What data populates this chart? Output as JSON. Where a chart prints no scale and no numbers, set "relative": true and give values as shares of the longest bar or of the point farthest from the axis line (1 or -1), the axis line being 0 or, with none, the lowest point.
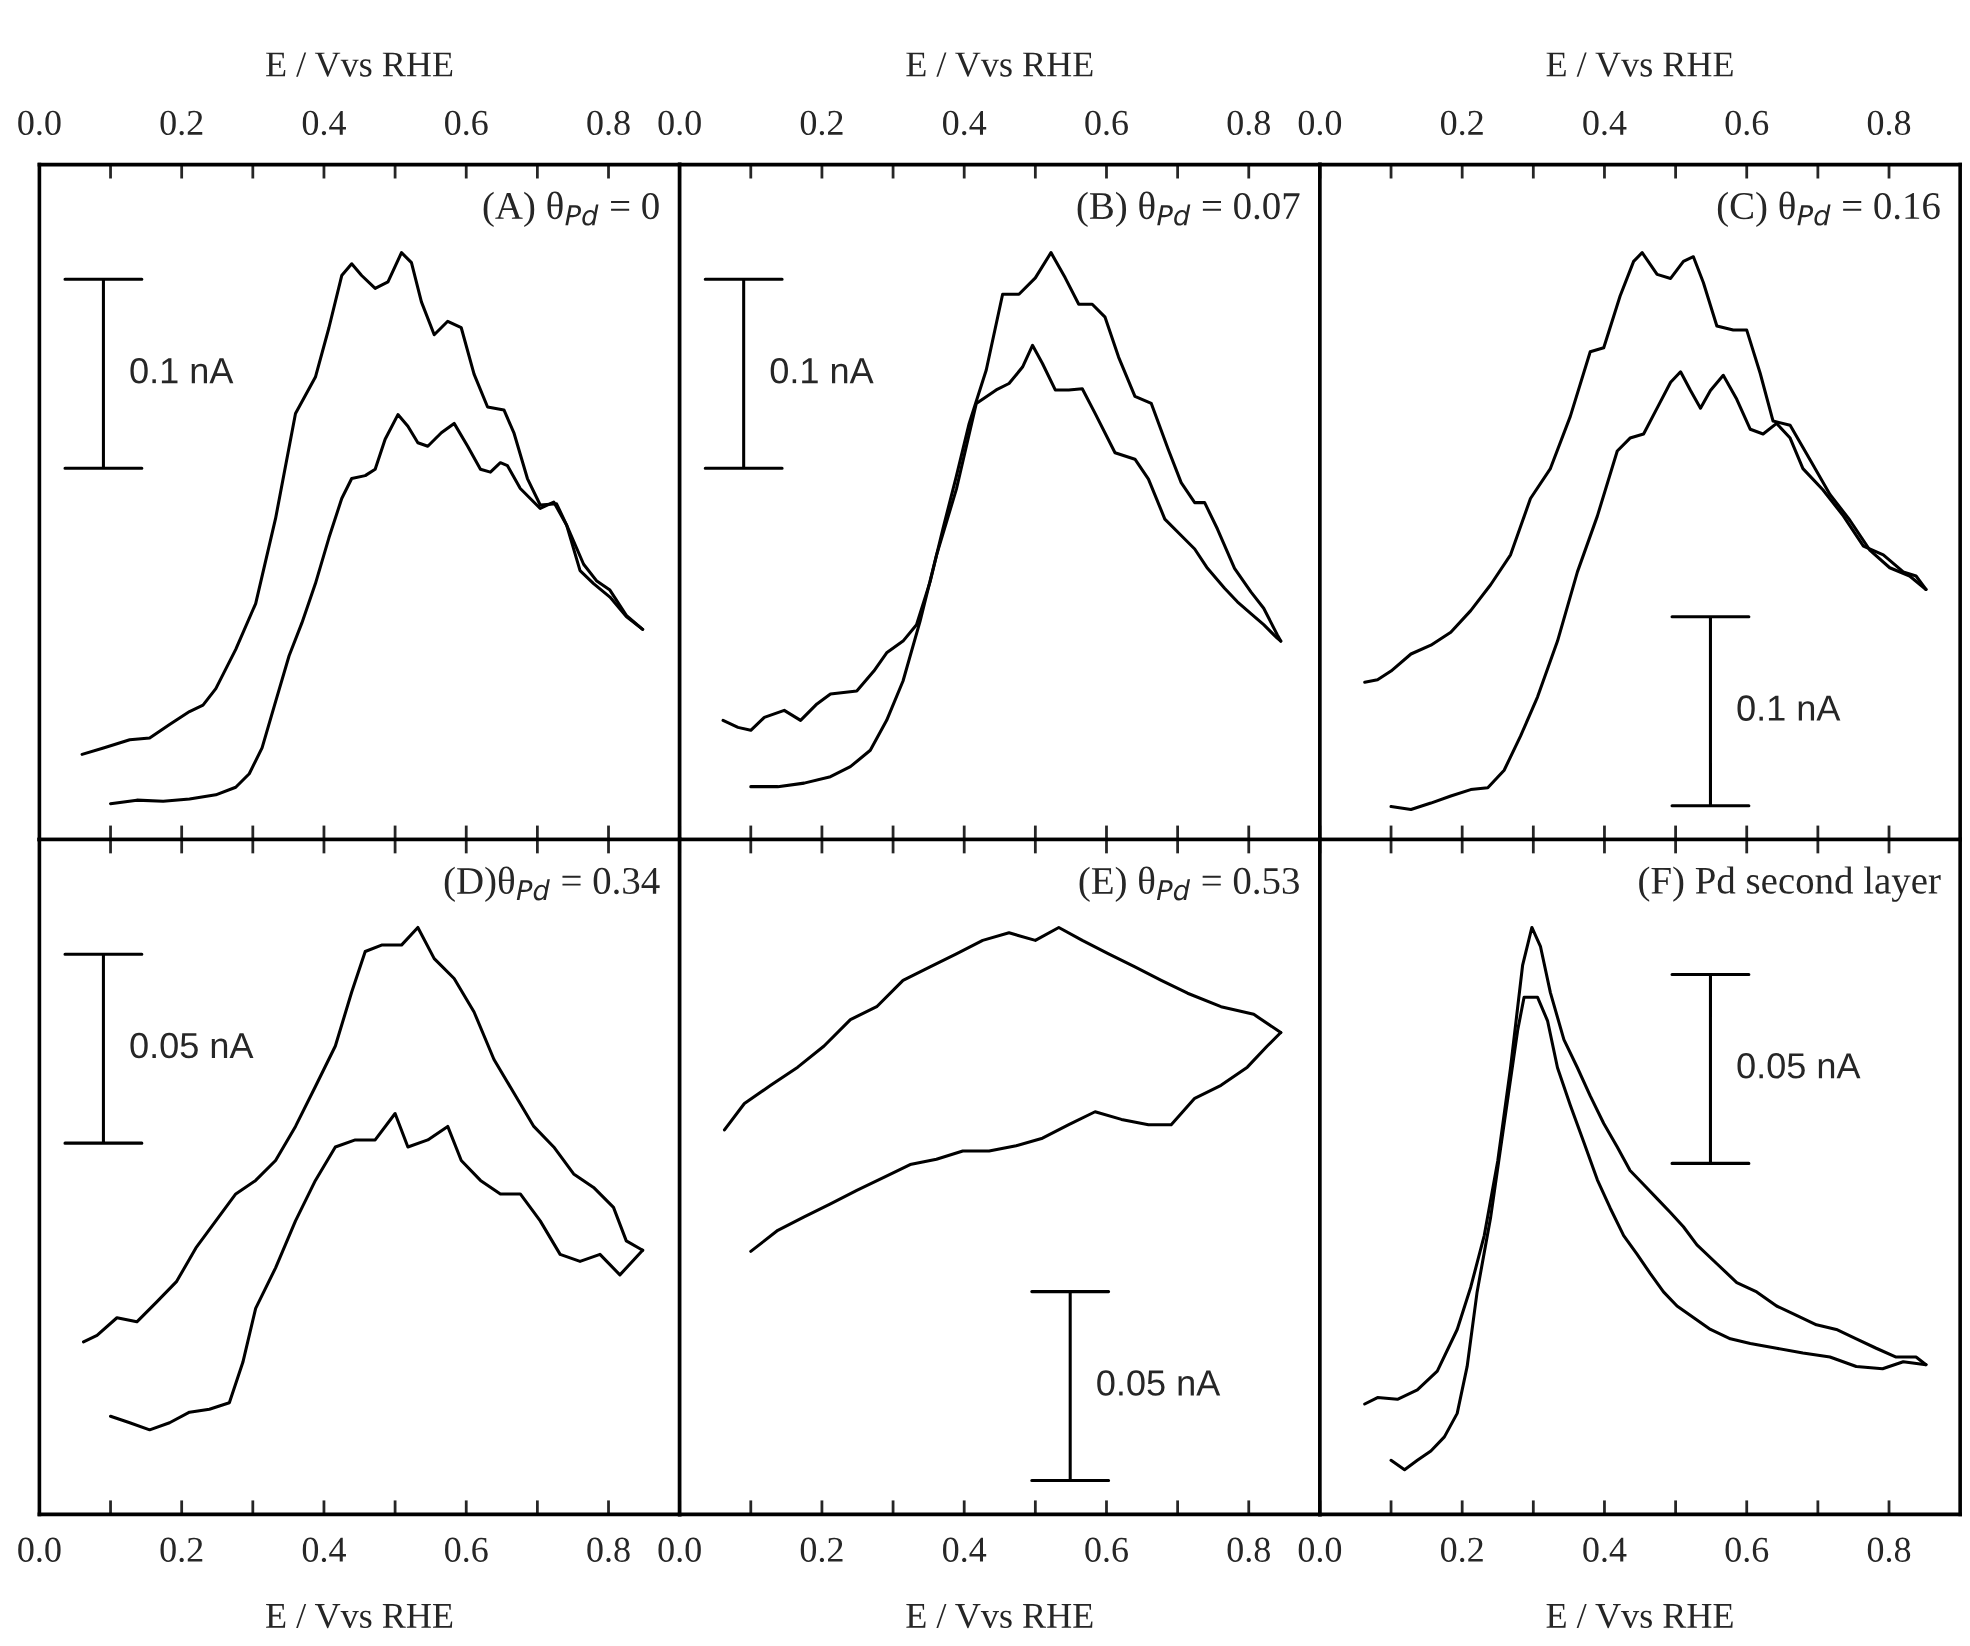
{
  "chart_data": [
    {
      "type": "line",
      "title": "(A) θ$_{Pd}$ = 0",
      "xlabel": "E / Vvs RHE",
      "annotations": [
        "0.1 nA"
      ],
      "relative": true,
      "tick_labels": "x",
      "xlim": [
        0,
        0.9
      ],
      "xticks": [
        {
          "value": 0,
          "label": "0.0"
        },
        {
          "value": 0.1,
          "label": null
        },
        {
          "value": 0.2,
          "label": "0.2"
        },
        {
          "value": 0.3,
          "label": null
        },
        {
          "value": 0.4,
          "label": "0.4"
        },
        {
          "value": 0.5,
          "label": null
        },
        {
          "value": 0.6,
          "label": "0.6"
        },
        {
          "value": 0.7,
          "label": null
        },
        {
          "value": 0.8,
          "label": "0.8"
        }
      ],
      "series": [
        {
          "color": "#000000",
          "x": [
            0.06,
            0.09,
            0.127,
            0.155,
            0.183,
            0.211,
            0.23,
            0.248,
            0.276,
            0.304,
            0.332,
            0.36,
            0.388,
            0.407,
            0.425,
            0.439,
            0.453,
            0.472,
            0.49,
            0.509,
            0.523,
            0.537,
            0.555,
            0.574,
            0.593,
            0.611,
            0.63,
            0.653,
            0.667,
            0.686,
            0.704,
            0.727,
            0.741,
            0.76,
            0.779,
            0.802,
            0.825,
            0.848
          ],
          "values": [
            0.145,
            0.156,
            0.17,
            0.173,
            0.196,
            0.218,
            0.229,
            0.257,
            0.324,
            0.402,
            0.547,
            0.726,
            0.788,
            0.872,
            0.961,
            0.981,
            0.961,
            0.939,
            0.95,
            1.0,
            0.983,
            0.916,
            0.86,
            0.883,
            0.872,
            0.793,
            0.737,
            0.732,
            0.693,
            0.615,
            0.57,
            0.572,
            0.536,
            0.458,
            0.436,
            0.413,
            0.38,
            0.358
          ]
        },
        {
          "color": "#000000",
          "x": [
            0.1,
            0.137,
            0.174,
            0.211,
            0.248,
            0.276,
            0.295,
            0.313,
            0.332,
            0.351,
            0.369,
            0.388,
            0.407,
            0.425,
            0.439,
            0.458,
            0.472,
            0.486,
            0.504,
            0.518,
            0.532,
            0.546,
            0.565,
            0.583,
            0.602,
            0.62,
            0.634,
            0.648,
            0.658,
            0.676,
            0.704,
            0.723,
            0.741,
            0.765,
            0.783,
            0.802,
            0.825,
            0.848
          ],
          "values": [
            0.061,
            0.067,
            0.065,
            0.069,
            0.076,
            0.089,
            0.112,
            0.156,
            0.235,
            0.313,
            0.369,
            0.436,
            0.514,
            0.581,
            0.615,
            0.62,
            0.631,
            0.682,
            0.724,
            0.704,
            0.676,
            0.67,
            0.693,
            0.709,
            0.67,
            0.631,
            0.626,
            0.642,
            0.637,
            0.598,
            0.564,
            0.575,
            0.536,
            0.469,
            0.441,
            0.425,
            0.382,
            0.358
          ]
        }
      ]
    },
    {
      "type": "line",
      "title": "(B) θ$_{Pd}$ = 0.07",
      "xlabel": "E / Vvs RHE",
      "annotations": [
        "0.1 nA"
      ],
      "relative": true,
      "tick_labels": "x",
      "xlim": [
        0,
        0.9
      ],
      "xticks": [
        {
          "value": 0,
          "label": "0.0"
        },
        {
          "value": 0.1,
          "label": null
        },
        {
          "value": 0.2,
          "label": "0.2"
        },
        {
          "value": 0.3,
          "label": null
        },
        {
          "value": 0.4,
          "label": "0.4"
        },
        {
          "value": 0.5,
          "label": null
        },
        {
          "value": 0.6,
          "label": "0.6"
        },
        {
          "value": 0.7,
          "label": null
        },
        {
          "value": 0.8,
          "label": "0.8"
        }
      ],
      "series": [
        {
          "color": "#000000",
          "x": [
            0.061,
            0.082,
            0.1,
            0.119,
            0.147,
            0.17,
            0.193,
            0.212,
            0.249,
            0.273,
            0.291,
            0.314,
            0.333,
            0.352,
            0.37,
            0.389,
            0.407,
            0.431,
            0.454,
            0.477,
            0.5,
            0.522,
            0.542,
            0.561,
            0.58,
            0.598,
            0.617,
            0.64,
            0.663,
            0.687,
            0.705,
            0.724,
            0.738,
            0.756,
            0.78,
            0.803,
            0.821,
            0.84,
            0.845
          ],
          "values": [
            0.203,
            0.191,
            0.186,
            0.208,
            0.22,
            0.203,
            0.231,
            0.248,
            0.253,
            0.287,
            0.318,
            0.338,
            0.366,
            0.439,
            0.529,
            0.619,
            0.709,
            0.8,
            0.929,
            0.929,
            0.957,
            1.0,
            0.957,
            0.912,
            0.912,
            0.89,
            0.822,
            0.755,
            0.743,
            0.664,
            0.608,
            0.574,
            0.574,
            0.529,
            0.462,
            0.422,
            0.394,
            0.349,
            0.338
          ]
        },
        {
          "color": "#000000",
          "x": [
            0.1,
            0.138,
            0.175,
            0.212,
            0.24,
            0.268,
            0.291,
            0.314,
            0.338,
            0.361,
            0.389,
            0.417,
            0.445,
            0.463,
            0.482,
            0.496,
            0.51,
            0.528,
            0.547,
            0.566,
            0.584,
            0.612,
            0.64,
            0.659,
            0.682,
            0.705,
            0.724,
            0.742,
            0.766,
            0.784,
            0.803,
            0.821,
            0.84,
            0.845
          ],
          "values": [
            0.09,
            0.09,
            0.096,
            0.107,
            0.124,
            0.152,
            0.203,
            0.27,
            0.372,
            0.484,
            0.597,
            0.743,
            0.766,
            0.777,
            0.805,
            0.842,
            0.811,
            0.766,
            0.766,
            0.768,
            0.726,
            0.659,
            0.648,
            0.614,
            0.546,
            0.518,
            0.495,
            0.462,
            0.428,
            0.405,
            0.385,
            0.366,
            0.343,
            0.338
          ]
        }
      ]
    },
    {
      "type": "line",
      "title": "(C) θ$_{Pd}$ = 0.16",
      "xlabel": "E / Vvs RHE",
      "annotations": [
        "0.1 nA"
      ],
      "relative": true,
      "tick_labels": "x",
      "xlim": [
        0,
        0.9
      ],
      "xticks": [
        {
          "value": 0,
          "label": "0.0"
        },
        {
          "value": 0.1,
          "label": null
        },
        {
          "value": 0.2,
          "label": "0.2"
        },
        {
          "value": 0.3,
          "label": null
        },
        {
          "value": 0.4,
          "label": "0.4"
        },
        {
          "value": 0.5,
          "label": null
        },
        {
          "value": 0.6,
          "label": "0.6"
        },
        {
          "value": 0.7,
          "label": null
        },
        {
          "value": 0.8,
          "label": "0.8"
        }
      ],
      "series": [
        {
          "color": "#000000",
          "x": [
            0.063,
            0.081,
            0.1,
            0.128,
            0.156,
            0.184,
            0.212,
            0.24,
            0.268,
            0.296,
            0.324,
            0.352,
            0.38,
            0.399,
            0.422,
            0.441,
            0.453,
            0.474,
            0.493,
            0.511,
            0.525,
            0.539,
            0.558,
            0.581,
            0.6,
            0.619,
            0.637,
            0.661,
            0.689,
            0.717,
            0.745,
            0.773,
            0.801,
            0.829,
            0.852
          ],
          "values": [
            0.268,
            0.272,
            0.287,
            0.316,
            0.331,
            0.353,
            0.39,
            0.434,
            0.485,
            0.581,
            0.632,
            0.721,
            0.831,
            0.838,
            0.926,
            0.985,
            1.0,
            0.963,
            0.956,
            0.985,
            0.993,
            0.949,
            0.875,
            0.868,
            0.868,
            0.794,
            0.713,
            0.706,
            0.647,
            0.588,
            0.544,
            0.493,
            0.463,
            0.449,
            0.426
          ]
        },
        {
          "color": "#000000",
          "x": [
            0.1,
            0.128,
            0.156,
            0.184,
            0.212,
            0.236,
            0.259,
            0.282,
            0.306,
            0.334,
            0.362,
            0.39,
            0.418,
            0.436,
            0.455,
            0.474,
            0.493,
            0.507,
            0.521,
            0.535,
            0.549,
            0.567,
            0.586,
            0.605,
            0.623,
            0.642,
            0.661,
            0.679,
            0.707,
            0.736,
            0.764,
            0.792,
            0.82,
            0.838,
            0.852
          ],
          "values": [
            0.056,
            0.051,
            0.062,
            0.074,
            0.085,
            0.088,
            0.118,
            0.176,
            0.243,
            0.338,
            0.456,
            0.551,
            0.662,
            0.684,
            0.691,
            0.735,
            0.779,
            0.797,
            0.765,
            0.735,
            0.765,
            0.791,
            0.75,
            0.699,
            0.691,
            0.709,
            0.684,
            0.632,
            0.596,
            0.551,
            0.5,
            0.485,
            0.456,
            0.449,
            0.426
          ]
        }
      ]
    },
    {
      "type": "line",
      "title": "(D)θ$_{Pd}$ = 0.34",
      "xlabel": "E / Vvs RHE",
      "annotations": [
        "0.05 nA"
      ],
      "relative": true,
      "tick_labels": "x",
      "xlim": [
        0,
        0.9
      ],
      "xticks": [
        {
          "value": 0,
          "label": "0.0"
        },
        {
          "value": 0.1,
          "label": null
        },
        {
          "value": 0.2,
          "label": "0.2"
        },
        {
          "value": 0.3,
          "label": null
        },
        {
          "value": 0.4,
          "label": "0.4"
        },
        {
          "value": 0.5,
          "label": null
        },
        {
          "value": 0.6,
          "label": "0.6"
        },
        {
          "value": 0.7,
          "label": null
        },
        {
          "value": 0.8,
          "label": "0.8"
        }
      ],
      "series": [
        {
          "color": "#000000",
          "x": [
            0.062,
            0.081,
            0.109,
            0.137,
            0.165,
            0.193,
            0.22,
            0.248,
            0.276,
            0.304,
            0.332,
            0.36,
            0.388,
            0.416,
            0.439,
            0.458,
            0.481,
            0.509,
            0.532,
            0.555,
            0.583,
            0.611,
            0.639,
            0.667,
            0.695,
            0.723,
            0.751,
            0.779,
            0.807,
            0.825,
            0.848
          ],
          "values": [
            0.294,
            0.305,
            0.335,
            0.328,
            0.362,
            0.397,
            0.454,
            0.5,
            0.546,
            0.569,
            0.603,
            0.661,
            0.729,
            0.798,
            0.89,
            0.959,
            0.97,
            0.97,
            1.0,
            0.947,
            0.913,
            0.856,
            0.775,
            0.718,
            0.661,
            0.626,
            0.58,
            0.557,
            0.523,
            0.466,
            0.45
          ]
        },
        {
          "color": "#000000",
          "x": [
            0.1,
            0.127,
            0.155,
            0.183,
            0.211,
            0.239,
            0.267,
            0.286,
            0.304,
            0.332,
            0.36,
            0.388,
            0.416,
            0.444,
            0.472,
            0.5,
            0.518,
            0.546,
            0.574,
            0.593,
            0.62,
            0.648,
            0.676,
            0.704,
            0.732,
            0.76,
            0.788,
            0.816,
            0.848
          ],
          "values": [
            0.167,
            0.156,
            0.144,
            0.156,
            0.174,
            0.179,
            0.19,
            0.259,
            0.351,
            0.42,
            0.5,
            0.569,
            0.626,
            0.638,
            0.638,
            0.683,
            0.626,
            0.638,
            0.661,
            0.603,
            0.569,
            0.546,
            0.546,
            0.5,
            0.443,
            0.431,
            0.443,
            0.408,
            0.45
          ]
        }
      ]
    },
    {
      "type": "line",
      "title": "(E) θ$_{Pd}$ = 0.53",
      "xlabel": "E / Vvs RHE",
      "annotations": [
        "0.05 nA"
      ],
      "relative": true,
      "tick_labels": "x",
      "xlim": [
        0,
        0.9
      ],
      "xticks": [
        {
          "value": 0,
          "label": "0.0"
        },
        {
          "value": 0.1,
          "label": null
        },
        {
          "value": 0.2,
          "label": "0.2"
        },
        {
          "value": 0.3,
          "label": null
        },
        {
          "value": 0.4,
          "label": "0.4"
        },
        {
          "value": 0.5,
          "label": null
        },
        {
          "value": 0.6,
          "label": "0.6"
        },
        {
          "value": 0.7,
          "label": null
        },
        {
          "value": 0.8,
          "label": "0.8"
        }
      ],
      "series": [
        {
          "color": "#000000",
          "x": [
            0.063,
            0.091,
            0.128,
            0.166,
            0.203,
            0.24,
            0.277,
            0.314,
            0.352,
            0.389,
            0.426,
            0.463,
            0.5,
            0.533,
            0.566,
            0.603,
            0.64,
            0.677,
            0.714,
            0.761,
            0.807,
            0.845
          ],
          "values": [
            0.655,
            0.7,
            0.731,
            0.762,
            0.798,
            0.843,
            0.865,
            0.91,
            0.933,
            0.955,
            0.978,
            0.991,
            0.978,
            1.0,
            0.978,
            0.955,
            0.933,
            0.91,
            0.888,
            0.865,
            0.852,
            0.821
          ]
        },
        {
          "color": "#000000",
          "x": [
            0.1,
            0.138,
            0.175,
            0.212,
            0.249,
            0.287,
            0.324,
            0.361,
            0.398,
            0.435,
            0.473,
            0.51,
            0.547,
            0.584,
            0.621,
            0.659,
            0.691,
            0.724,
            0.761,
            0.798,
            0.826,
            0.845
          ],
          "values": [
            0.448,
            0.484,
            0.507,
            0.529,
            0.552,
            0.574,
            0.596,
            0.605,
            0.619,
            0.619,
            0.628,
            0.641,
            0.664,
            0.686,
            0.673,
            0.664,
            0.664,
            0.709,
            0.731,
            0.762,
            0.798,
            0.821
          ]
        }
      ]
    },
    {
      "type": "line",
      "title": "(F) Pd second layer",
      "xlabel": "E / Vvs RHE",
      "annotations": [
        "0.05 nA"
      ],
      "relative": true,
      "tick_labels": "x",
      "xlim": [
        0,
        0.9
      ],
      "xticks": [
        {
          "value": 0,
          "label": "0.0"
        },
        {
          "value": 0.1,
          "label": null
        },
        {
          "value": 0.2,
          "label": "0.2"
        },
        {
          "value": 0.3,
          "label": null
        },
        {
          "value": 0.4,
          "label": "0.4"
        },
        {
          "value": 0.5,
          "label": null
        },
        {
          "value": 0.6,
          "label": "0.6"
        },
        {
          "value": 0.7,
          "label": null
        },
        {
          "value": 0.8,
          "label": "0.8"
        }
      ],
      "series": [
        {
          "color": "#000000",
          "x": [
            0.063,
            0.081,
            0.109,
            0.137,
            0.165,
            0.193,
            0.212,
            0.231,
            0.25,
            0.268,
            0.285,
            0.298,
            0.31,
            0.324,
            0.343,
            0.362,
            0.38,
            0.399,
            0.418,
            0.436,
            0.455,
            0.474,
            0.493,
            0.511,
            0.53,
            0.558,
            0.586,
            0.614,
            0.642,
            0.67,
            0.698,
            0.726,
            0.754,
            0.782,
            0.81,
            0.838,
            0.852
          ],
          "values": [
            0.188,
            0.199,
            0.196,
            0.212,
            0.244,
            0.315,
            0.387,
            0.475,
            0.602,
            0.761,
            0.936,
            1.0,
            0.968,
            0.889,
            0.809,
            0.761,
            0.713,
            0.666,
            0.626,
            0.586,
            0.562,
            0.538,
            0.514,
            0.49,
            0.459,
            0.427,
            0.395,
            0.379,
            0.355,
            0.339,
            0.323,
            0.315,
            0.299,
            0.283,
            0.268,
            0.268,
            0.255
          ]
        },
        {
          "color": "#000000",
          "x": [
            0.1,
            0.119,
            0.137,
            0.156,
            0.175,
            0.193,
            0.207,
            0.221,
            0.24,
            0.259,
            0.278,
            0.287,
            0.306,
            0.32,
            0.334,
            0.352,
            0.371,
            0.39,
            0.408,
            0.427,
            0.446,
            0.464,
            0.483,
            0.502,
            0.521,
            0.549,
            0.577,
            0.605,
            0.642,
            0.679,
            0.717,
            0.754,
            0.791,
            0.82,
            0.852
          ],
          "values": [
            0.092,
            0.076,
            0.092,
            0.108,
            0.132,
            0.172,
            0.252,
            0.379,
            0.506,
            0.666,
            0.825,
            0.881,
            0.881,
            0.841,
            0.761,
            0.697,
            0.634,
            0.57,
            0.522,
            0.475,
            0.443,
            0.411,
            0.379,
            0.355,
            0.339,
            0.315,
            0.299,
            0.291,
            0.283,
            0.275,
            0.268,
            0.252,
            0.248,
            0.26,
            0.255
          ]
        }
      ]
    }
  ]
}
